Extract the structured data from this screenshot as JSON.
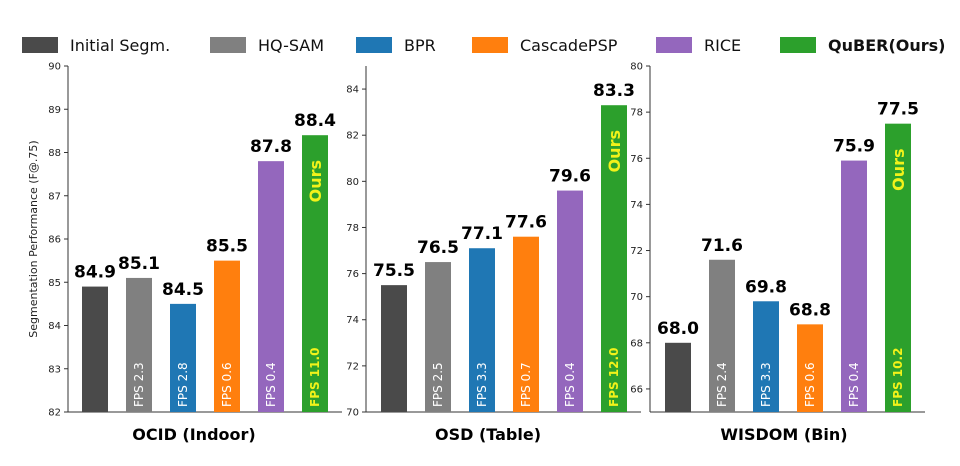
{
  "legend": [
    {
      "label": "Initial Segm.",
      "color": "#4a4a4a"
    },
    {
      "label": "HQ-SAM",
      "color": "#808080"
    },
    {
      "label": "BPR",
      "color": "#1f77b4"
    },
    {
      "label": "CascadePSP",
      "color": "#ff7f0e"
    },
    {
      "label": "RICE",
      "color": "#9467bd"
    },
    {
      "label": "QuBER(Ours)",
      "color": "#2ca02c"
    }
  ],
  "ours_label": "Ours",
  "chart_data": [
    {
      "type": "bar",
      "title": "OCID (Indoor)",
      "ylabel": "Segmentation Performance (F@.75)",
      "ylim": [
        82,
        90
      ],
      "yticks": [
        "82",
        "83",
        "84",
        "85",
        "86",
        "87",
        "88",
        "89",
        "90"
      ],
      "categories": [
        "Initial Segm.",
        "HQ-SAM",
        "BPR",
        "CascadePSP",
        "RICE",
        "QuBER(Ours)"
      ],
      "values": [
        84.9,
        85.1,
        84.5,
        85.5,
        87.8,
        88.4
      ],
      "value_labels": [
        "84.9",
        "85.1",
        "84.5",
        "85.5",
        "87.8",
        "88.4"
      ],
      "fps_labels": [
        "",
        "FPS 2.3",
        "FPS 2.8",
        "FPS 0.6",
        "FPS 0.4",
        "FPS 11.0"
      ]
    },
    {
      "type": "bar",
      "title": "OSD (Table)",
      "ylabel": "",
      "ylim": [
        70,
        85
      ],
      "yticks": [
        "70",
        "72",
        "74",
        "76",
        "78",
        "80",
        "82",
        "84"
      ],
      "categories": [
        "Initial Segm.",
        "HQ-SAM",
        "BPR",
        "CascadePSP",
        "RICE",
        "QuBER(Ours)"
      ],
      "values": [
        75.5,
        76.5,
        77.1,
        77.6,
        79.6,
        83.3
      ],
      "value_labels": [
        "75.5",
        "76.5",
        "77.1",
        "77.6",
        "79.6",
        "83.3"
      ],
      "fps_labels": [
        "",
        "FPS 2.5",
        "FPS 3.3",
        "FPS 0.7",
        "FPS 0.4",
        "FPS 12.0"
      ]
    },
    {
      "type": "bar",
      "title": "WISDOM (Bin)",
      "ylabel": "",
      "ylim": [
        65,
        80
      ],
      "yticks": [
        "66",
        "68",
        "70",
        "72",
        "74",
        "76",
        "78",
        "80"
      ],
      "categories": [
        "Initial Segm.",
        "HQ-SAM",
        "BPR",
        "CascadePSP",
        "RICE",
        "QuBER(Ours)"
      ],
      "values": [
        68.0,
        71.6,
        69.8,
        68.8,
        75.9,
        77.5
      ],
      "value_labels": [
        "68.0",
        "71.6",
        "69.8",
        "68.8",
        "75.9",
        "77.5"
      ],
      "fps_labels": [
        "",
        "FPS 2.4",
        "FPS 3.3",
        "FPS 0.6",
        "FPS 0.4",
        "FPS 10.2"
      ]
    }
  ]
}
